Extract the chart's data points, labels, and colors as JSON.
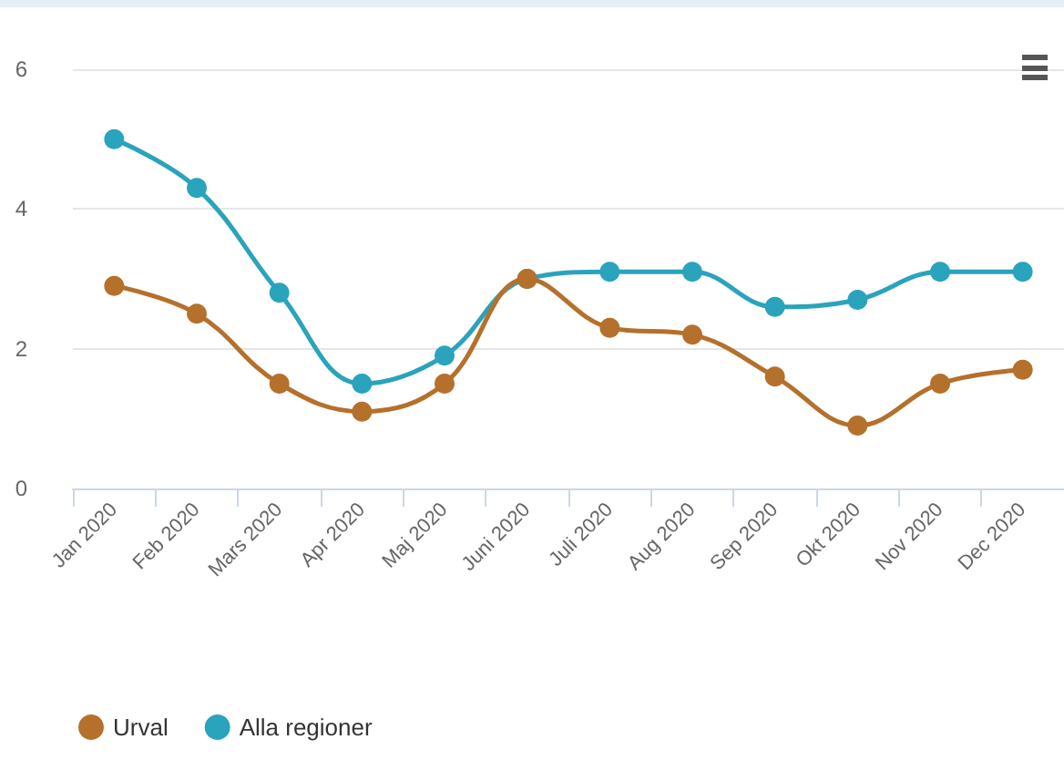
{
  "chart_data": {
    "type": "line",
    "categories": [
      "Jan 2020",
      "Feb 2020",
      "Mars 2020",
      "Apr 2020",
      "Maj 2020",
      "Juni 2020",
      "Juli 2020",
      "Aug 2020",
      "Sep 2020",
      "Okt 2020",
      "Nov 2020",
      "Dec 2020"
    ],
    "series": [
      {
        "name": "Urval",
        "color": "#b5702b",
        "values": [
          2.9,
          2.5,
          1.5,
          1.1,
          1.5,
          3.0,
          2.3,
          2.2,
          1.6,
          0.9,
          1.5,
          1.7
        ]
      },
      {
        "name": "Alla regioner",
        "color": "#2aa3bd",
        "values": [
          5.0,
          4.3,
          2.8,
          1.5,
          1.9,
          3.0,
          3.1,
          3.1,
          2.6,
          2.7,
          3.1,
          3.1
        ]
      }
    ],
    "ylim": [
      0,
      6
    ],
    "yticks": [
      0,
      2,
      4,
      6
    ],
    "grid": "y",
    "legend": "bottom left",
    "marker": "circle",
    "line_style": "solid"
  }
}
